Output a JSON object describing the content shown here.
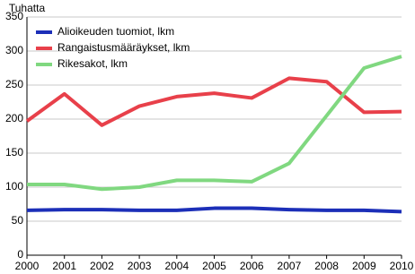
{
  "chart_data": {
    "type": "line",
    "y_label": "Tuhatta",
    "categories": [
      "2000",
      "2001",
      "2002",
      "2003",
      "2004",
      "2005",
      "2006",
      "2007",
      "2008",
      "2009",
      "2010"
    ],
    "series": [
      {
        "name": "Alioikeuden tuomiot, lkm",
        "color": "#1c2fb8",
        "values": [
          66,
          67,
          67,
          66,
          66,
          69,
          69,
          67,
          66,
          66,
          64
        ]
      },
      {
        "name": "Rangaistusmääräykset, lkm",
        "color": "#e8404a",
        "values": [
          197,
          237,
          191,
          219,
          233,
          238,
          231,
          260,
          255,
          210,
          211
        ]
      },
      {
        "name": "Rikesakot, lkm",
        "color": "#80d880",
        "values": [
          104,
          104,
          97,
          100,
          110,
          110,
          108,
          135,
          205,
          275,
          292
        ]
      }
    ],
    "ylim": [
      0,
      350
    ],
    "yticks": [
      0,
      50,
      100,
      150,
      200,
      250,
      300,
      350
    ],
    "grid": true,
    "legend": "upper left"
  }
}
